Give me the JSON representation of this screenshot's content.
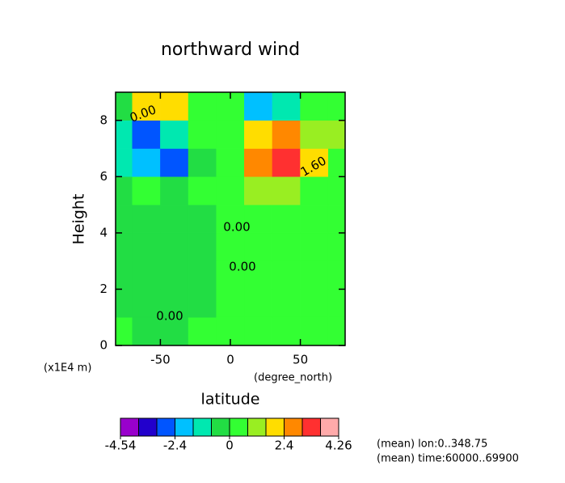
{
  "chart_data": {
    "type": "contour",
    "title": "northward wind",
    "x_label": "latitude",
    "y_label": "Height",
    "y_unit": "(x1E4 m)",
    "x_unit": "(degree_north)",
    "notes": [
      "(mean) lon:0..348.75",
      "(mean) time:60000..69900"
    ],
    "x": [
      -80,
      -60,
      -40,
      -20,
      0,
      20,
      40,
      60,
      80
    ],
    "y": [
      0.5,
      1.5,
      2.5,
      3.5,
      4.5,
      5.5,
      6.5,
      7.5,
      8.5
    ],
    "z": [
      [
        0.1,
        -0.5,
        -0.2,
        0.2,
        0.3,
        0.3,
        0.3,
        0.3,
        0.3
      ],
      [
        -0.1,
        -0.1,
        -0.1,
        -0.1,
        0.3,
        0.3,
        0.3,
        0.3,
        0.3
      ],
      [
        -0.1,
        -0.1,
        -0.1,
        -0.1,
        0.3,
        0.3,
        0.3,
        0.3,
        0.3
      ],
      [
        -0.1,
        -0.1,
        -0.1,
        -0.1,
        0.2,
        0.3,
        0.3,
        0.3,
        0.3
      ],
      [
        -0.1,
        -0.1,
        -0.1,
        -0.1,
        0.2,
        0.3,
        0.3,
        0.3,
        0.3
      ],
      [
        -0.2,
        0.3,
        -0.2,
        0.2,
        0.5,
        0.9,
        1.2,
        0.5,
        0.3
      ],
      [
        -1.2,
        -2.0,
        -3.0,
        -0.5,
        0.5,
        2.5,
        3.5,
        2.0,
        0.5
      ],
      [
        -1.0,
        -2.5,
        -1.5,
        0.2,
        0.5,
        2.0,
        2.5,
        1.5,
        0.9
      ],
      [
        -0.3,
        1.7,
        1.7,
        0.2,
        0.2,
        -1.8,
        -1.0,
        0.2,
        0.2
      ]
    ],
    "xlim": [
      -82,
      82
    ],
    "xticks": [
      -50,
      0,
      50
    ],
    "ylim": [
      0,
      9
    ],
    "yticks": [
      0,
      2,
      4,
      6,
      8
    ],
    "levels": [
      -4.54,
      -4,
      -3.2,
      -2.4,
      -1.6,
      -0.8,
      0,
      0.8,
      1.6,
      2.4,
      3.2,
      4,
      4.26
    ],
    "colors": [
      "#9900cc",
      "#2200cc",
      "#0055ff",
      "#00c0ff",
      "#00e8b0",
      "#22dd44",
      "#33ff33",
      "#99ee22",
      "#ffdd00",
      "#ff8800",
      "#ff3030",
      "#ffaaaa"
    ],
    "colorbar_ticks": [
      -4.54,
      -2.4,
      0,
      2.4,
      4.26
    ],
    "contour_labels": [
      "0.00",
      "0.00",
      "0.00",
      "0.00",
      "1.60"
    ]
  }
}
